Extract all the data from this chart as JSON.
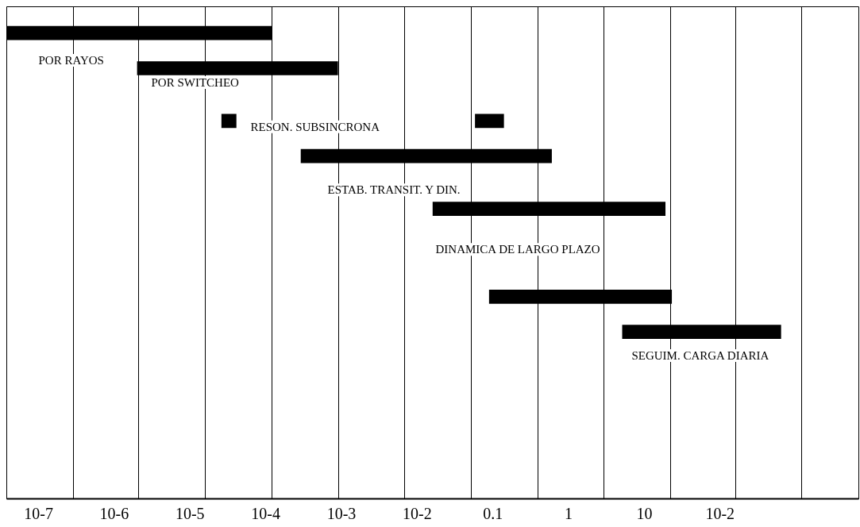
{
  "chart_data": {
    "type": "bar",
    "orientation": "horizontal",
    "log": "x",
    "categories": [
      null,
      null,
      null,
      null,
      null,
      null,
      null,
      null,
      null,
      null,
      null,
      null,
      null,
      null,
      null,
      null,
      null,
      null,
      null,
      null,
      null,
      null,
      null,
      null,
      null,
      null,
      null,
      null
    ],
    "series": [
      {
        "color": "#000000",
        "values": [
          null,
          0.00012,
          null,
          0.000898,
          null,
          null,
          1.5e-05,
          null,
          0.6,
          null,
          null,
          19,
          null,
          null,
          null,
          null,
          23,
          null,
          635,
          null,
          null,
          null,
          null,
          null,
          null,
          null,
          null,
          null
        ],
        "base": [
          null,
          3.8e-08,
          null,
          2e-06,
          null,
          null,
          2.6e-05,
          null,
          0.00029,
          null,
          null,
          0.016,
          null,
          null,
          null,
          null,
          0.089,
          null,
          5.1,
          null,
          null,
          null,
          null,
          null,
          null,
          null,
          null,
          null
        ]
      },
      {
        "color": "#000000",
        "values": [
          null,
          null,
          null,
          null,
          null,
          null,
          0.082,
          null,
          null,
          null,
          null,
          null,
          null,
          null,
          null,
          null,
          null,
          null,
          null,
          null,
          null,
          null,
          null,
          null,
          null,
          null,
          null,
          null
        ],
        "base": [
          null,
          null,
          null,
          null,
          null,
          null,
          0.058,
          null,
          null,
          null,
          null,
          null,
          null,
          null,
          null,
          null,
          null,
          null,
          null,
          null,
          null,
          null,
          null,
          null,
          null,
          null,
          null,
          null
        ]
      }
    ],
    "xlim": [
      3.8e-08,
      6800
    ],
    "xticks": [
      {
        "value": 3.8e-08,
        "label": null
      },
      {
        "value": 2.9e-07,
        "label": null
      },
      {
        "value": 2.1e-06,
        "label": null
      },
      {
        "value": 1.6e-05,
        "label": null
      },
      {
        "value": 0.00012,
        "label": null
      },
      {
        "value": 0.00091,
        "label": null
      },
      {
        "value": 0.0069,
        "label": null
      },
      {
        "value": 0.052,
        "label": null
      },
      {
        "value": 0.39,
        "label": null
      },
      {
        "value": 2.9,
        "label": null
      },
      {
        "value": 22,
        "label": null
      },
      {
        "value": 160,
        "label": null
      },
      {
        "value": 1200,
        "label": null
      },
      {
        "value": 1e-07,
        "label": "10-7"
      },
      {
        "value": 1e-06,
        "label": "10-6"
      },
      {
        "value": 1e-05,
        "label": "10-5"
      },
      {
        "value": 0.0001,
        "label": "10-4"
      },
      {
        "value": 0.001,
        "label": "10-3"
      },
      {
        "value": 0.01,
        "label": "10-2"
      },
      {
        "value": 0.1,
        "label": "0.1"
      },
      {
        "value": 1,
        "label": "1"
      },
      {
        "value": 10,
        "label": "10"
      },
      {
        "value": 100,
        "label": "10-2"
      }
    ],
    "grid": "x",
    "tick_labels": "x",
    "annotations": [
      "POR RAYOS",
      "POR SWITCHEO",
      "RESON. SUBSINCRONA",
      "ESTAB. TRANSIT. Y DIN.",
      "DINAMICA DE LARGO PLAZO",
      "SEGUIM. CARGA DIARIA"
    ]
  }
}
